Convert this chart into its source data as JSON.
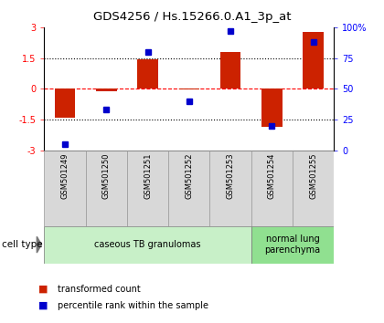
{
  "title": "GDS4256 / Hs.15266.0.A1_3p_at",
  "samples": [
    "GSM501249",
    "GSM501250",
    "GSM501251",
    "GSM501252",
    "GSM501253",
    "GSM501254",
    "GSM501255"
  ],
  "transformed_count": [
    -1.4,
    -0.1,
    1.45,
    -0.05,
    1.8,
    -1.85,
    2.8
  ],
  "percentile_rank": [
    5,
    33,
    80,
    40,
    97,
    20,
    88
  ],
  "ylim_left": [
    -3,
    3
  ],
  "ylim_right": [
    0,
    100
  ],
  "yticks_left": [
    -3,
    -1.5,
    0,
    1.5,
    3
  ],
  "ytick_labels_left": [
    "-3",
    "-1.5",
    "0",
    "1.5",
    "3"
  ],
  "yticks_right": [
    0,
    25,
    50,
    75,
    100
  ],
  "ytick_labels_right": [
    "0",
    "25",
    "50",
    "75",
    "100%"
  ],
  "bar_color": "#cc2200",
  "dot_color": "#0000cc",
  "sample_box_color": "#d8d8d8",
  "cell_groups": [
    {
      "label": "caseous TB granulomas",
      "indices": [
        0,
        1,
        2,
        3,
        4
      ],
      "color": "#c8f0c8"
    },
    {
      "label": "normal lung\nparenchyma",
      "indices": [
        5,
        6
      ],
      "color": "#90e090"
    }
  ],
  "legend_bar_label": "transformed count",
  "legend_dot_label": "percentile rank within the sample",
  "cell_type_label": "cell type",
  "bar_width": 0.5
}
